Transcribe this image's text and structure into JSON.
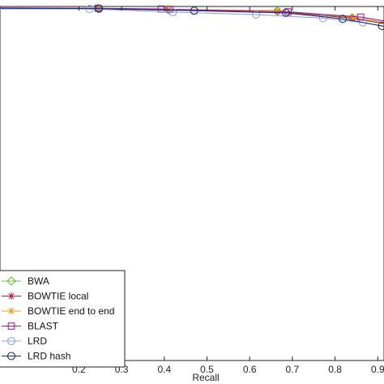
{
  "chart_data": {
    "type": "line",
    "xlabel": "Recall",
    "ylabel": "",
    "xlim": [
      0.0,
      1.0
    ],
    "ylim": [
      0.0,
      1.0
    ],
    "xticks": [
      0.2,
      0.3,
      0.4,
      0.5,
      0.6,
      0.7,
      0.8,
      0.9
    ],
    "xtick_labels": [
      "0.2",
      "0.3",
      "0.4",
      "0.5",
      "0.6",
      "0.7",
      "0.8",
      "0.9"
    ],
    "grid": false,
    "legend_position": "bottom-left",
    "series": [
      {
        "name": "BWA",
        "color": "#6abf3a",
        "marker": "diamond",
        "points": [
          [
            0.0,
            0.995
          ],
          [
            0.245,
            0.994
          ],
          [
            0.41,
            0.991
          ],
          [
            0.665,
            0.987
          ],
          [
            0.84,
            0.968
          ],
          [
            0.97,
            0.94
          ]
        ]
      },
      {
        "name": "BOWTIE local",
        "color": "#b52a3a",
        "marker": "star",
        "points": [
          [
            0.0,
            0.994
          ],
          [
            0.245,
            0.993
          ],
          [
            0.41,
            0.99
          ],
          [
            0.665,
            0.986
          ],
          [
            0.84,
            0.967
          ],
          [
            0.97,
            0.94
          ]
        ]
      },
      {
        "name": "BOWTIE end to end",
        "color": "#e0a020",
        "marker": "asterisk",
        "points": [
          [
            0.0,
            0.995
          ],
          [
            0.245,
            0.994
          ],
          [
            0.41,
            0.992
          ],
          [
            0.665,
            0.988
          ],
          [
            0.843,
            0.969
          ],
          [
            0.97,
            0.945
          ]
        ]
      },
      {
        "name": "BLAST",
        "color": "#a020a0",
        "marker": "square",
        "points": [
          [
            0.0,
            0.996
          ],
          [
            0.245,
            0.995
          ],
          [
            0.393,
            0.993
          ],
          [
            0.413,
            0.992
          ],
          [
            0.69,
            0.985
          ],
          [
            0.86,
            0.97
          ],
          [
            0.97,
            0.948
          ]
        ]
      },
      {
        "name": "LRD",
        "color": "#8fa6d8",
        "marker": "circle",
        "points": [
          [
            0.0,
            0.993
          ],
          [
            0.225,
            0.993
          ],
          [
            0.42,
            0.984
          ],
          [
            0.615,
            0.977
          ],
          [
            0.772,
            0.967
          ],
          [
            0.865,
            0.955
          ],
          [
            0.97,
            0.93
          ]
        ]
      },
      {
        "name": "LRD hash",
        "color": "#1a2f6e",
        "marker": "circle",
        "points": [
          [
            0.0,
            0.995
          ],
          [
            0.247,
            0.994
          ],
          [
            0.47,
            0.988
          ],
          [
            0.685,
            0.982
          ],
          [
            0.818,
            0.965
          ],
          [
            0.91,
            0.945
          ],
          [
            0.97,
            0.925
          ]
        ]
      }
    ]
  }
}
